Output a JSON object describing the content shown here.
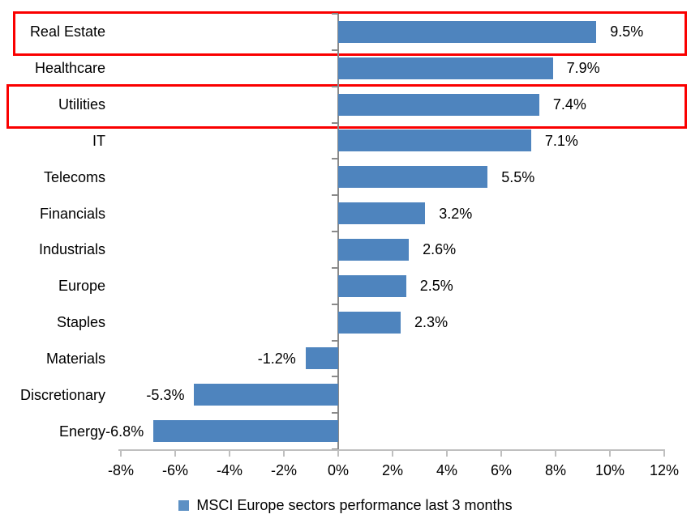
{
  "chart_data": {
    "type": "bar",
    "orientation": "horizontal",
    "categories": [
      "Real Estate",
      "Healthcare",
      "Utilities",
      "IT",
      "Telecoms",
      "Financials",
      "Industrials",
      "Europe",
      "Staples",
      "Materials",
      "Discretionary",
      "Energy"
    ],
    "values": [
      9.5,
      7.9,
      7.4,
      7.1,
      5.5,
      3.2,
      2.6,
      2.5,
      2.3,
      -1.2,
      -5.3,
      -6.8
    ],
    "data_labels": [
      "9.5%",
      "7.9%",
      "7.4%",
      "7.1%",
      "5.5%",
      "3.2%",
      "2.6%",
      "2.5%",
      "2.3%",
      "-1.2%",
      "-5.3%",
      "-6.8%"
    ],
    "x_ticks": [
      "-8%",
      "-6%",
      "-4%",
      "-2%",
      "0%",
      "2%",
      "4%",
      "6%",
      "8%",
      "10%",
      "12%"
    ],
    "x_tick_values": [
      -8,
      -6,
      -4,
      -2,
      0,
      2,
      4,
      6,
      8,
      10,
      12
    ],
    "xlim": [
      -8,
      12
    ],
    "grid": false,
    "legend": "MSCI Europe sectors performance last 3 months",
    "legend_position": "bottom-center",
    "bar_color": "#4E84BE",
    "legend_marker_color": "#5C90C4",
    "axis_line_color": "#8a8a8a",
    "x_axis_line_color": "#bfbfbf",
    "text_color": "#000000",
    "highlighted_categories": [
      "Real Estate",
      "Utilities"
    ],
    "highlight_box_color": "#fa0000"
  }
}
